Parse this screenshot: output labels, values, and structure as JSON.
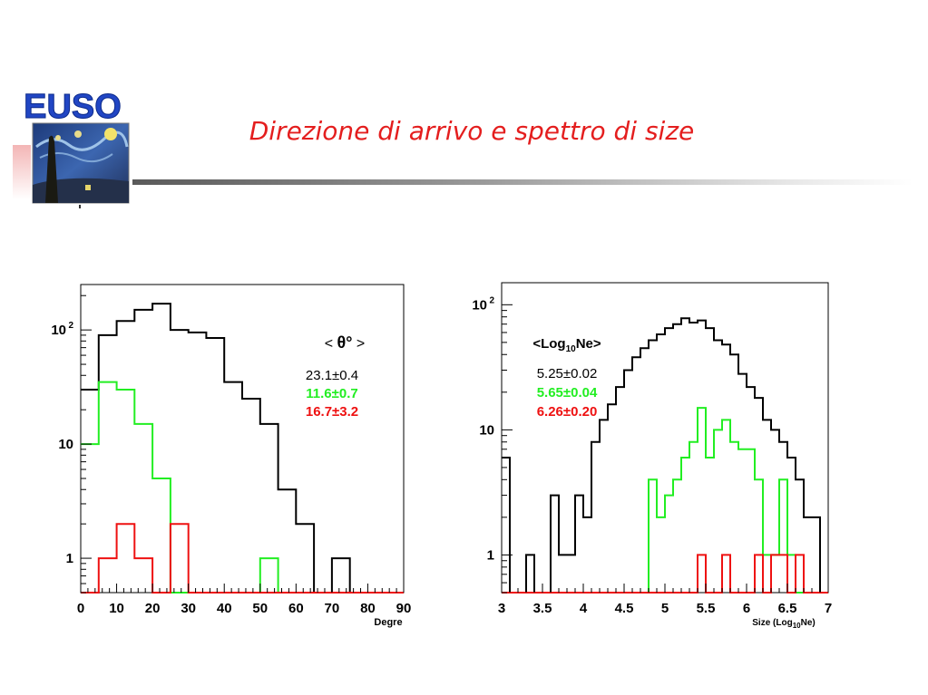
{
  "slide": {
    "title": "Direzione di arrivo e spettro di size",
    "logo_text": "EUSO"
  },
  "chart_data": [
    {
      "type": "histogram",
      "xlabel": "Degre",
      "ylabel": "",
      "xlim": [
        0,
        90
      ],
      "ylim": [
        0.5,
        250
      ],
      "yscale": "log",
      "x_ticks": [
        0,
        10,
        20,
        30,
        40,
        50,
        60,
        70,
        80,
        90
      ],
      "y_ticks": [
        {
          "value": 1,
          "label": "1",
          "sup": ""
        },
        {
          "value": 10,
          "label": "10",
          "sup": ""
        },
        {
          "value": 100,
          "label": "10",
          "sup": "2"
        }
      ],
      "bin_edges": [
        0,
        5,
        10,
        15,
        20,
        25,
        30,
        35,
        40,
        45,
        50,
        55,
        60,
        65,
        70,
        75,
        80,
        85,
        90
      ],
      "series": [
        {
          "color": "#000000",
          "values": [
            30,
            90,
            120,
            150,
            170,
            100,
            95,
            85,
            35,
            25,
            15,
            4,
            2,
            0,
            1,
            0,
            0,
            0
          ]
        },
        {
          "color": "#22ee22",
          "values": [
            10,
            35,
            30,
            15,
            5,
            0,
            0,
            0,
            0,
            0,
            1,
            0,
            0,
            0,
            0,
            0,
            0,
            0
          ]
        },
        {
          "color": "#ee1111",
          "values": [
            0,
            1,
            2,
            1,
            0,
            2,
            0,
            0,
            0,
            0,
            0,
            0,
            0,
            0,
            0,
            0,
            0,
            0
          ]
        }
      ],
      "legend": {
        "placement": "top-right",
        "header_parts": [
          "< ",
          "θ°",
          " >"
        ],
        "entries": [
          {
            "text": "23.1±0.4",
            "color": "#000000"
          },
          {
            "text": "11.6±0.7",
            "color": "#22ee22"
          },
          {
            "text": "16.7±3.2",
            "color": "#ee1111"
          }
        ]
      }
    },
    {
      "type": "histogram",
      "xlabel_parts": [
        "Size (Log",
        "10",
        "Ne)"
      ],
      "ylabel": "",
      "xlim": [
        3,
        7
      ],
      "ylim": [
        0.5,
        150
      ],
      "yscale": "log",
      "x_ticks": [
        {
          "value": 3,
          "label": "3"
        },
        {
          "value": 3.5,
          "label": "3.5"
        },
        {
          "value": 4,
          "label": "4"
        },
        {
          "value": 4.5,
          "label": "4.5"
        },
        {
          "value": 5,
          "label": "5"
        },
        {
          "value": 5.5,
          "label": "5.5"
        },
        {
          "value": 6,
          "label": "6"
        },
        {
          "value": 6.5,
          "label": "6.5"
        },
        {
          "value": 7,
          "label": "7"
        }
      ],
      "y_ticks": [
        {
          "value": 1,
          "label": "1",
          "sup": ""
        },
        {
          "value": 10,
          "label": "10",
          "sup": ""
        },
        {
          "value": 100,
          "label": "10",
          "sup": "2"
        }
      ],
      "bin_start": 3.0,
      "bin_width": 0.1,
      "series": [
        {
          "color": "#000000",
          "values": [
            6,
            0,
            0,
            1,
            0,
            0,
            3,
            1,
            1,
            3,
            2,
            8,
            12,
            16,
            22,
            30,
            38,
            45,
            52,
            58,
            65,
            70,
            78,
            72,
            75,
            65,
            52,
            48,
            40,
            28,
            22,
            18,
            12,
            10,
            8,
            6,
            4,
            2,
            2,
            0
          ]
        },
        {
          "color": "#22ee22",
          "values": [
            0,
            0,
            0,
            0,
            0,
            0,
            0,
            0,
            0,
            0,
            0,
            0,
            0,
            0,
            0,
            0,
            0,
            0,
            4,
            2,
            3,
            4,
            6,
            8,
            15,
            6,
            10,
            12,
            8,
            7,
            7,
            4,
            1,
            1,
            4,
            1,
            0,
            0,
            0,
            0
          ]
        },
        {
          "color": "#ee1111",
          "values": [
            0,
            0,
            0,
            0,
            0,
            0,
            0,
            0,
            0,
            0,
            0,
            0,
            0,
            0,
            0,
            0,
            0,
            0,
            0,
            0,
            0,
            0,
            0,
            0,
            1,
            0,
            0,
            1,
            0,
            0,
            0,
            1,
            0,
            1,
            1,
            0,
            1,
            0,
            0,
            0
          ]
        }
      ],
      "legend": {
        "placement": "top-left",
        "header_parts": [
          "<Log",
          "10",
          "Ne>"
        ],
        "entries": [
          {
            "text": "5.25±0.02",
            "color": "#000000"
          },
          {
            "text": "5.65±0.04",
            "color": "#22ee22"
          },
          {
            "text": "6.26±0.20",
            "color": "#ee1111"
          }
        ]
      }
    }
  ]
}
